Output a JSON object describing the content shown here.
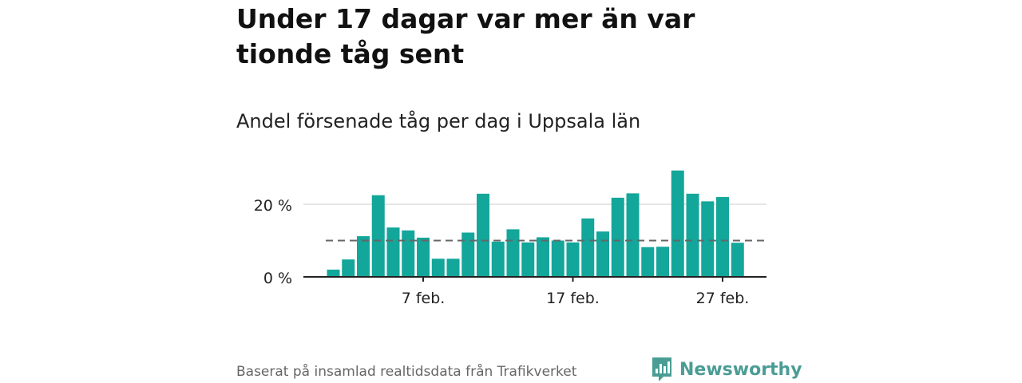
{
  "title": "Under 17 dagar var mer än var tionde tåg sent",
  "subtitle": "Andel försenade tåg per dag i Uppsala län",
  "footer": "Baserat på insamlad realtidsdata från Trafikverket",
  "logo": {
    "text": "Newsworthy",
    "icon": "newsworthy-logo-icon",
    "color": "#4a9d95"
  },
  "colors": {
    "bar": "#13a69a",
    "reference_line": "#666666",
    "grid": "#dddddd",
    "axis": "#222222"
  },
  "chart_data": {
    "type": "bar",
    "x": [
      "1 feb.",
      "2 feb.",
      "3 feb.",
      "4 feb.",
      "5 feb.",
      "6 feb.",
      "7 feb.",
      "8 feb.",
      "9 feb.",
      "10 feb.",
      "11 feb.",
      "12 feb.",
      "13 feb.",
      "14 feb.",
      "15 feb.",
      "16 feb.",
      "17 feb.",
      "18 feb.",
      "19 feb.",
      "20 feb.",
      "21 feb.",
      "22 feb.",
      "23 feb.",
      "24 feb.",
      "25 feb.",
      "26 feb.",
      "27 feb.",
      "28 feb."
    ],
    "values": [
      2,
      4.8,
      11.2,
      22.5,
      13.6,
      12.8,
      10.8,
      5,
      5,
      12.2,
      22.9,
      9.7,
      13.1,
      9.5,
      10.9,
      10,
      9.5,
      16.1,
      12.5,
      21.8,
      23,
      8.2,
      8.3,
      29.3,
      22.9,
      20.8,
      22,
      9.4
    ],
    "reference_line": 10,
    "ylim": [
      0,
      30
    ],
    "y_ticks": [
      {
        "value": 0,
        "label": "0 %"
      },
      {
        "value": 20,
        "label": "20 %"
      }
    ],
    "x_ticks": [
      {
        "index": 6,
        "label": "7 feb."
      },
      {
        "index": 16,
        "label": "17 feb."
      },
      {
        "index": 26,
        "label": "27 feb."
      }
    ],
    "grid": "horizontal",
    "legend": "none"
  }
}
